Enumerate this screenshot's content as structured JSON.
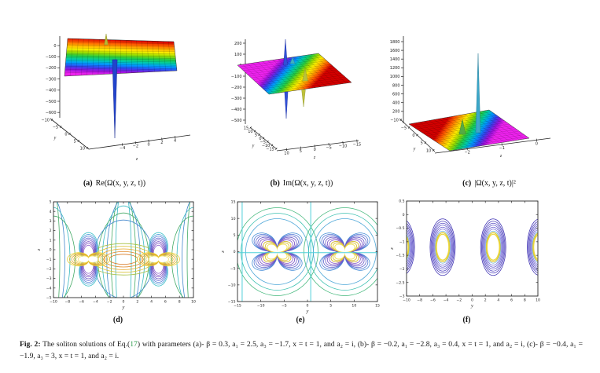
{
  "figure_caption": {
    "label": "Fig. 2:",
    "pre_link": " The soliton solutions of Eq.(",
    "link": "17",
    "post_link": ") with parameters (a)- β = 0.3, a₁ = 2.5, a₃ = −1.7, x = t = 1, and a₂ = i, (b)- β = −0.2, a₁ = −2.8, a₃ = 0.4, x = t = 1, and a₂ = i, (c)- β = −0.4, a₁ = −1.9, a₃ = 3, x = t = 1, and a₂ = i.",
    "link_color": "#2f9e4f"
  },
  "chart_data": [
    {
      "id": "a",
      "type": "surface3d",
      "caption_label": "(a)",
      "caption_text": "Re(Ω(x, y, z, t))",
      "z_axis": {
        "ticks": [
          "0",
          "−100",
          "−200",
          "−300",
          "−400",
          "−500",
          "−600"
        ],
        "range": [
          -650,
          50
        ]
      },
      "y_axis": {
        "label": "y",
        "ticks": [
          "−10",
          "−5",
          "0",
          "5",
          "10"
        ],
        "range": [
          -10,
          10
        ]
      },
      "x_axis": {
        "label": "z",
        "ticks": [
          "−4",
          "−2",
          "0",
          "2",
          "4"
        ],
        "range": [
          -5,
          5
        ]
      },
      "description": "Flat plane at value 0 with a narrow downward singular spike reaching about −650 near z ≈ −2 and a small upward peak",
      "colormap": "rainbow, red at back edge to violet at front edge"
    },
    {
      "id": "b",
      "type": "surface3d",
      "caption_label": "(b)",
      "caption_text": "Im(Ω(x, y, z, t))",
      "z_axis": {
        "ticks": [
          "200",
          "100",
          "0",
          "−100",
          "−200",
          "−300",
          "−400",
          "−500"
        ],
        "range": [
          -500,
          250
        ]
      },
      "y_axis": {
        "label": "y",
        "ticks": [
          "15",
          "10",
          "5",
          "0",
          "−5",
          "−10",
          "−15"
        ],
        "range": [
          15,
          -15
        ]
      },
      "x_axis": {
        "label": "z",
        "ticks": [
          "10",
          "5",
          "0",
          "−5",
          "−10",
          "−15"
        ],
        "range": [
          15,
          -15
        ]
      },
      "description": "Flat plane at value 0 with an upward spike of about +250, a smaller peak, and paired downward spikes reaching about −500",
      "colormap": "rainbow, violet at back edge to red at front edge"
    },
    {
      "id": "c",
      "type": "surface3d",
      "caption_label": "(c)",
      "caption_text": "|Ω(x, y, z, t)|²",
      "z_axis": {
        "ticks": [
          "1800",
          "1600",
          "1400",
          "1200",
          "1000",
          "800",
          "600",
          "400",
          "200"
        ],
        "range": [
          0,
          1850
        ]
      },
      "y_axis": {
        "label": "y",
        "ticks": [
          "−10",
          "−5",
          "0",
          "5",
          "10"
        ],
        "range": [
          -10,
          10
        ]
      },
      "x_axis": {
        "label": "z",
        "ticks": [
          "−2",
          "−1",
          "0"
        ],
        "range": [
          -2.5,
          0.5
        ]
      },
      "description": "Flat plane near 0 with one tall narrow peak reaching about 1700 and a smaller peak of about 200",
      "colormap": "rainbow, red at back-left edge to violet at front-right corner"
    },
    {
      "id": "d",
      "type": "contour",
      "caption_label": "(d)",
      "caption_text": "",
      "x_axis": {
        "label": "y",
        "ticks": [
          "−10",
          "−8",
          "−6",
          "−4",
          "−2",
          "0",
          "2",
          "4",
          "6",
          "8",
          "10"
        ],
        "range": [
          -10,
          10
        ]
      },
      "y_axis": {
        "label": "z",
        "ticks": [
          "5",
          "4",
          "3",
          "2",
          "1",
          "0",
          "−1",
          "−2",
          "−3",
          "−4",
          "−5"
        ],
        "range": [
          5,
          -5
        ]
      },
      "features": {
        "centers_y": [
          -5,
          5
        ],
        "center_z": -1,
        "pattern": "two four-lobed bow-tie contour clusters (white lobes ringed by violet and yellow) joined by nested yellow-orange lens contours and tall teal field-line contours"
      },
      "palette": [
        "#3cc0c8",
        "#4a90d8",
        "#6a58c8",
        "#8858c8",
        "#44aa66",
        "#e8d23a",
        "#e09828"
      ]
    },
    {
      "id": "e",
      "type": "contour",
      "caption_label": "(e)",
      "caption_text": "",
      "x_axis": {
        "label": "y",
        "ticks": [
          "−15",
          "−10",
          "−5",
          "0",
          "5",
          "10",
          "15"
        ],
        "range": [
          -15,
          15
        ]
      },
      "y_axis": {
        "label": "z",
        "ticks": [
          "15",
          "10",
          "5",
          "0",
          "−5",
          "−10",
          "−15"
        ],
        "range": [
          15,
          -15
        ]
      },
      "features": {
        "centers_y": [
          -6.5,
          8
        ],
        "center_z": 0,
        "pattern": "two four-petal clover contour clusters (white diagonal petals ringed by yellow then violet-blue) inside nested green/teal ovals, with straight cyan cross lines"
      },
      "palette": [
        "#44b87c",
        "#4a90d8",
        "#6a58c8",
        "#9868d0",
        "#e8d23a",
        "#4ed0d8"
      ]
    },
    {
      "id": "f",
      "type": "contour",
      "caption_label": "(f)",
      "caption_text": "",
      "x_axis": {
        "label": "y",
        "ticks": [
          "−10",
          "−8",
          "−6",
          "−4",
          "−2",
          "0",
          "2",
          "4",
          "6",
          "8",
          "10"
        ],
        "range": [
          -10,
          10
        ]
      },
      "y_axis": {
        "label": "z",
        "ticks": [
          "0.5",
          "0",
          "−0.5",
          "−1",
          "−1.5",
          "−2",
          "−2.5",
          "−3"
        ],
        "range": [
          0.5,
          -3
        ]
      },
      "features": {
        "centers_y": [
          -10.7,
          -4.5,
          3.2,
          10.3
        ],
        "center_z": -1.2,
        "pattern": "periodic train of nested oval contours: indigo outer rings, light-blue middle rings, thick yellow inner ring around white cores"
      },
      "palette": [
        "#4134b4",
        "#7d75dc",
        "#6aaede",
        "#e8d23a"
      ]
    }
  ]
}
